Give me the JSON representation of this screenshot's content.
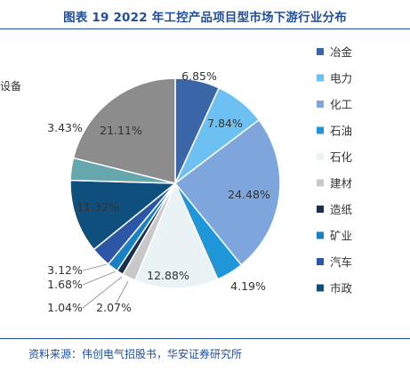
{
  "title": "图表 19 2022 年工控产品项目型市场下游行业分布",
  "side_text": "设备",
  "source": "资料来源：伟创电气招股书，华安证券研究所",
  "chart_data": {
    "type": "pie",
    "title": "图表 19 2022 年工控产品项目型市场下游行业分布",
    "slices": [
      {
        "label": "冶金",
        "value": 6.85,
        "value_label": "6.85%",
        "color": "#3a66a8"
      },
      {
        "label": "电力",
        "value": 7.84,
        "value_label": "7.84%",
        "color": "#6cc0f2"
      },
      {
        "label": "化工",
        "value": 24.48,
        "value_label": "24.48%",
        "color": "#7fa6dc"
      },
      {
        "label": "石油",
        "value": 4.19,
        "value_label": "4.19%",
        "color": "#1f96d7"
      },
      {
        "label": "石化",
        "value": 12.88,
        "value_label": "12.88%",
        "color": "#e9f2f4"
      },
      {
        "label": "建材",
        "value": 2.07,
        "value_label": "2.07%",
        "color": "#c8c8c8"
      },
      {
        "label": "造纸",
        "value": 1.04,
        "value_label": "1.04%",
        "color": "#1d2f4f"
      },
      {
        "label": "矿业",
        "value": 1.68,
        "value_label": "1.68%",
        "color": "#1a80c4"
      },
      {
        "label": "汽车",
        "value": 3.12,
        "value_label": "3.12%",
        "color": "#2d57a6"
      },
      {
        "label": "市政",
        "value": 11.32,
        "value_label": "11.32%",
        "color": "#0f4f7e"
      },
      {
        "label": "",
        "value": 3.43,
        "value_label": "3.43%",
        "color": "#66a6ad"
      },
      {
        "label": "",
        "value": 21.11,
        "value_label": "21.11%",
        "color": "#8c8c8c"
      }
    ],
    "legend": [
      "冶金",
      "电力",
      "化工",
      "石油",
      "石化",
      "建材",
      "造纸",
      "矿业",
      "汽车",
      "市政"
    ],
    "legend_position": "right"
  }
}
